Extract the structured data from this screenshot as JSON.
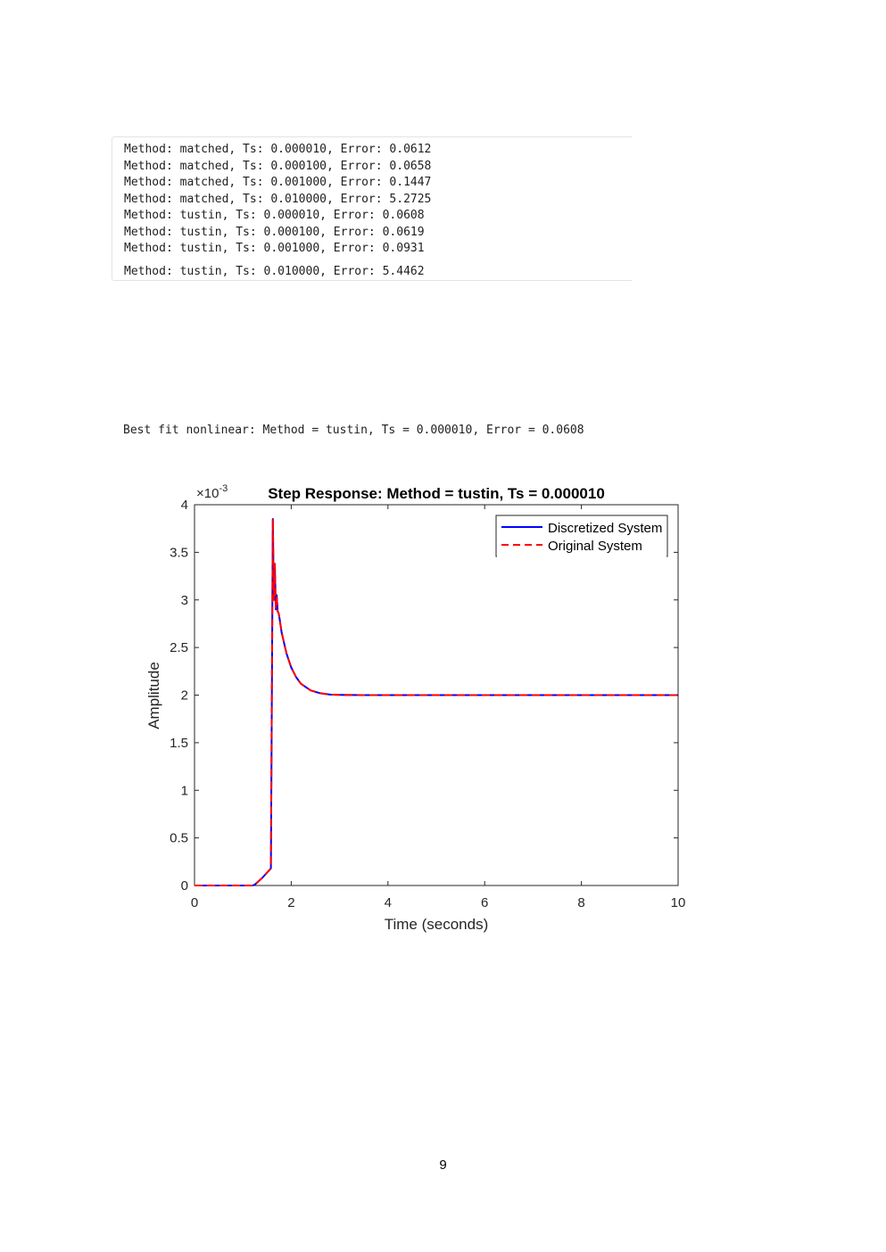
{
  "output_lines": [
    "Method: matched, Ts: 0.000010, Error: 0.0612",
    "Method: matched, Ts: 0.000100, Error: 0.0658",
    "Method: matched, Ts: 0.001000, Error: 0.1447",
    "Method: matched, Ts: 0.010000, Error: 5.2725",
    "Method: tustin, Ts: 0.000010, Error: 0.0608",
    "Method: tustin, Ts: 0.000100, Error: 0.0619",
    "Method: tustin, Ts: 0.001000, Error: 0.0931",
    "Method: tustin, Ts: 0.010000, Error: 5.4462"
  ],
  "best_fit_text": "Best fit nonlinear: Method = tustin, Ts = 0.000010, Error = 0.0608",
  "page_number": "9",
  "chart_data": {
    "type": "line",
    "title": "Step Response: Method = tustin, Ts = 0.000010",
    "xlabel": "Time (seconds)",
    "ylabel": "Amplitude",
    "y_multiplier": "×10",
    "y_exponent": "-3",
    "xlim": [
      0,
      10
    ],
    "ylim": [
      0,
      4
    ],
    "x_ticks": [
      "0",
      "2",
      "4",
      "6",
      "8",
      "10"
    ],
    "y_ticks": [
      "0",
      "0.5",
      "1",
      "1.5",
      "2",
      "2.5",
      "3",
      "3.5",
      "4"
    ],
    "grid": false,
    "legend_position": "top-right",
    "series": [
      {
        "name": "Discretized System",
        "color": "#0000ff",
        "style": "solid",
        "x": [
          0,
          1.2,
          1.25,
          1.4,
          1.58,
          1.62,
          1.64,
          1.66,
          1.68,
          1.7,
          1.72,
          1.74,
          1.76,
          1.8,
          1.9,
          2.0,
          2.1,
          2.2,
          2.4,
          2.6,
          2.8,
          3.0,
          3.5,
          4,
          5,
          6,
          7,
          8,
          9,
          10
        ],
        "y": [
          0,
          0,
          0.01,
          0.08,
          0.18,
          3.85,
          3.0,
          3.38,
          2.9,
          3.05,
          2.88,
          2.86,
          2.8,
          2.66,
          2.44,
          2.29,
          2.19,
          2.12,
          2.05,
          2.02,
          2.006,
          2.002,
          2.0,
          2.0,
          2.0,
          2.0,
          2.0,
          2.0,
          2.0,
          2.0
        ]
      },
      {
        "name": "Original System",
        "color": "#ff0000",
        "style": "dashed",
        "x": [
          0,
          1.2,
          1.25,
          1.4,
          1.58,
          1.62,
          1.64,
          1.66,
          1.68,
          1.7,
          1.72,
          1.74,
          1.76,
          1.8,
          1.9,
          2.0,
          2.1,
          2.2,
          2.4,
          2.6,
          2.8,
          3.0,
          3.5,
          4,
          5,
          6,
          7,
          8,
          9,
          10
        ],
        "y": [
          0,
          0,
          0.01,
          0.08,
          0.18,
          3.85,
          3.0,
          3.38,
          2.9,
          3.05,
          2.88,
          2.86,
          2.8,
          2.66,
          2.44,
          2.29,
          2.19,
          2.12,
          2.05,
          2.02,
          2.006,
          2.002,
          2.0,
          2.0,
          2.0,
          2.0,
          2.0,
          2.0,
          2.0,
          2.0
        ]
      }
    ]
  }
}
